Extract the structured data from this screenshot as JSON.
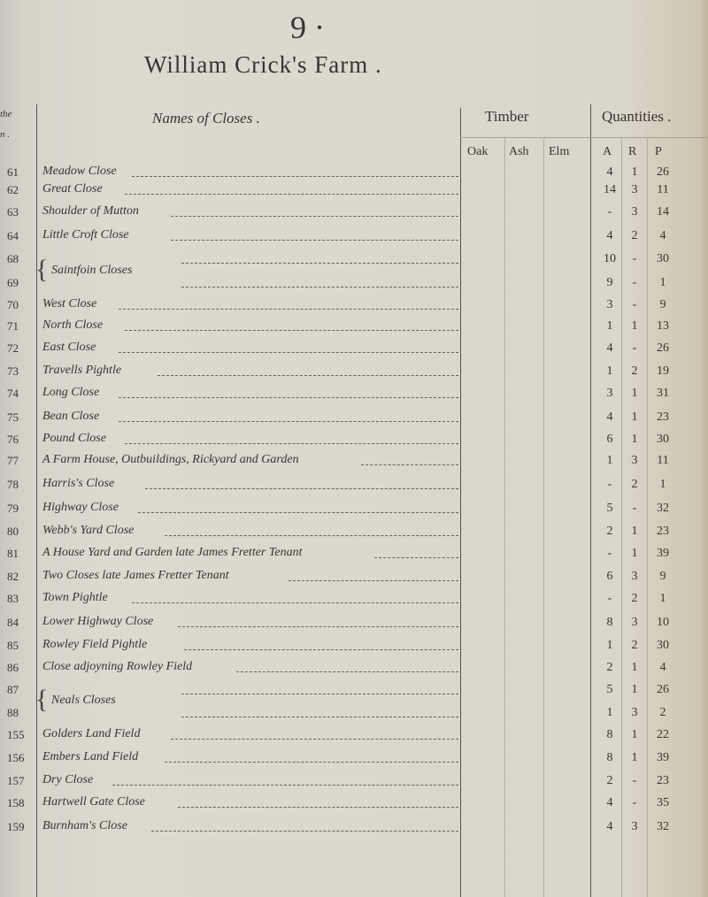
{
  "page_number": "9 ·",
  "title": "William Crick's Farm  .",
  "headers": {
    "number_col": [
      "the",
      "n ."
    ],
    "names": "Names of Closes .",
    "timber": "Timber",
    "quantities": "Quantities .",
    "timber_sub": [
      "Oak",
      "Ash",
      "Elm"
    ],
    "quantity_sub": [
      "A",
      "R",
      "P"
    ]
  },
  "entries": [
    {
      "nums": [
        "61"
      ],
      "name": "Meadow Close",
      "q": [
        [
          "4",
          "1",
          "26"
        ]
      ]
    },
    {
      "nums": [
        "62"
      ],
      "name": "Great Close",
      "q": [
        [
          "14",
          "3",
          "11"
        ]
      ]
    },
    {
      "nums": [
        "63"
      ],
      "name": "Shoulder of Mutton",
      "q": [
        [
          "-",
          "3",
          "14"
        ]
      ]
    },
    {
      "nums": [
        "64"
      ],
      "name": "Little Croft Close",
      "q": [
        [
          "4",
          "2",
          "4"
        ]
      ]
    },
    {
      "nums": [
        "68",
        "69"
      ],
      "name": "Saintfoin Closes",
      "q": [
        [
          "10",
          "-",
          "30"
        ],
        [
          "9",
          "-",
          "1"
        ]
      ]
    },
    {
      "nums": [
        "70"
      ],
      "name": "West Close",
      "q": [
        [
          "3",
          "-",
          "9"
        ]
      ]
    },
    {
      "nums": [
        "71"
      ],
      "name": "North Close",
      "q": [
        [
          "1",
          "1",
          "13"
        ]
      ]
    },
    {
      "nums": [
        "72"
      ],
      "name": "East Close",
      "q": [
        [
          "4",
          "-",
          "26"
        ]
      ]
    },
    {
      "nums": [
        "73"
      ],
      "name": "Travells Pightle",
      "q": [
        [
          "1",
          "2",
          "19"
        ]
      ]
    },
    {
      "nums": [
        "74"
      ],
      "name": "Long Close",
      "q": [
        [
          "3",
          "1",
          "31"
        ]
      ]
    },
    {
      "nums": [
        "75"
      ],
      "name": "Bean Close",
      "q": [
        [
          "4",
          "1",
          "23"
        ]
      ]
    },
    {
      "nums": [
        "76"
      ],
      "name": "Pound Close",
      "q": [
        [
          "6",
          "1",
          "30"
        ]
      ]
    },
    {
      "nums": [
        "77"
      ],
      "name": "A Farm House, Outbuildings, Rickyard and Garden",
      "q": [
        [
          "1",
          "3",
          "11"
        ]
      ]
    },
    {
      "nums": [
        "78"
      ],
      "name": "Harris's Close",
      "q": [
        [
          "-",
          "2",
          "1"
        ]
      ]
    },
    {
      "nums": [
        "79"
      ],
      "name": "Highway Close",
      "q": [
        [
          "5",
          "-",
          "32"
        ]
      ]
    },
    {
      "nums": [
        "80"
      ],
      "name": "Webb's Yard Close",
      "q": [
        [
          "2",
          "1",
          "23"
        ]
      ]
    },
    {
      "nums": [
        "81"
      ],
      "name": "A House Yard and Garden late James Fretter Tenant",
      "q": [
        [
          "-",
          "1",
          "39"
        ]
      ]
    },
    {
      "nums": [
        "82"
      ],
      "name": "Two Closes late James Fretter Tenant",
      "q": [
        [
          "6",
          "3",
          "9"
        ]
      ]
    },
    {
      "nums": [
        "83"
      ],
      "name": "Town Pightle",
      "q": [
        [
          "-",
          "2",
          "1"
        ]
      ]
    },
    {
      "nums": [
        "84"
      ],
      "name": "Lower Highway Close",
      "q": [
        [
          "8",
          "3",
          "10"
        ]
      ]
    },
    {
      "nums": [
        "85"
      ],
      "name": "Rowley Field Pightle",
      "q": [
        [
          "1",
          "2",
          "30"
        ]
      ]
    },
    {
      "nums": [
        "86"
      ],
      "name": "Close adjoyning Rowley Field",
      "q": [
        [
          "2",
          "1",
          "4"
        ]
      ]
    },
    {
      "nums": [
        "87",
        "88"
      ],
      "name": "Neals Closes",
      "q": [
        [
          "5",
          "1",
          "26"
        ],
        [
          "1",
          "3",
          "2"
        ]
      ]
    },
    {
      "nums": [
        "155"
      ],
      "name": "Golders Land Field",
      "q": [
        [
          "8",
          "1",
          "22"
        ]
      ]
    },
    {
      "nums": [
        "156"
      ],
      "name": "Embers Land Field",
      "q": [
        [
          "8",
          "1",
          "39"
        ]
      ]
    },
    {
      "nums": [
        "157"
      ],
      "name": "Dry Close",
      "q": [
        [
          "2",
          "-",
          "23"
        ]
      ]
    },
    {
      "nums": [
        "158"
      ],
      "name": "Hartwell Gate Close",
      "q": [
        [
          "4",
          "-",
          "35"
        ]
      ]
    },
    {
      "nums": [
        "159"
      ],
      "name": "Burnham's Close",
      "q": [
        [
          "4",
          "3",
          "32"
        ]
      ]
    }
  ],
  "colors": {
    "paper": "#d9d6cc",
    "ink": "#3a342e"
  }
}
